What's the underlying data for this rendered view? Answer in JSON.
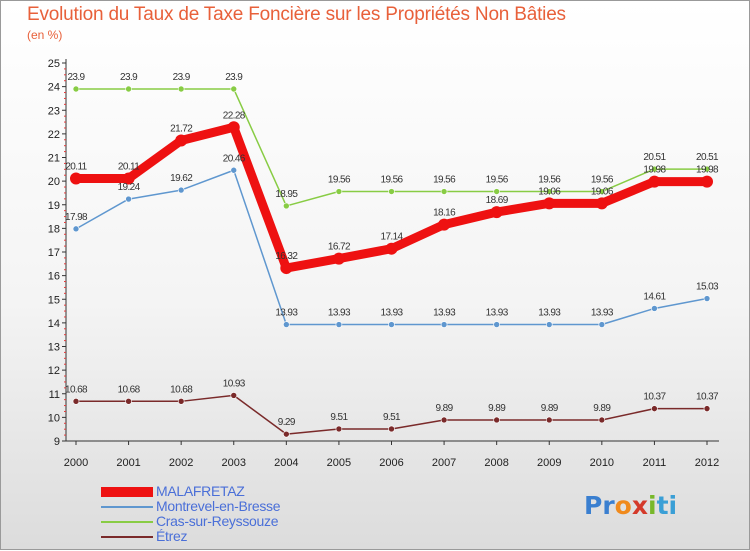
{
  "title": "Evolution du Taux de Taxe Foncière sur les Propriétés Non Bâties",
  "subtitle": "(en %)",
  "logo": {
    "parts": [
      "Pr",
      "o",
      "x",
      "i",
      "ti"
    ],
    "colors": [
      "#3a7fd0",
      "#f08a1c",
      "#d43a2a",
      "#78b82a",
      "#3a9fd6"
    ]
  },
  "chart_data": {
    "type": "line",
    "title": "Evolution du Taux de Taxe Foncière sur les Propriétés Non Bâties",
    "ylabel": "(en %)",
    "xlabel": "",
    "x": [
      "2000",
      "2001",
      "2002",
      "2003",
      "2004",
      "2005",
      "2006",
      "2007",
      "2008",
      "2009",
      "2010",
      "2011",
      "2012"
    ],
    "ylim": [
      9,
      25
    ],
    "yticks": [
      9,
      10,
      11,
      12,
      13,
      14,
      15,
      16,
      17,
      18,
      19,
      20,
      21,
      22,
      23,
      24,
      25
    ],
    "grid": false,
    "legend": "bottom-left",
    "series": [
      {
        "name": "MALAFRETAZ",
        "color": "#ee1111",
        "bold": true,
        "values": [
          20.11,
          20.11,
          21.72,
          22.28,
          16.32,
          16.72,
          17.14,
          18.16,
          18.69,
          19.06,
          19.06,
          19.98,
          19.98
        ],
        "labels": [
          "20.11",
          "20.11",
          "21.72",
          "22.28",
          "16.32",
          "16.72",
          "17.14",
          "18.16",
          "18.69",
          "19.06",
          "19.06",
          "19.98",
          "19.98"
        ]
      },
      {
        "name": "Montrevel-en-Bresse",
        "color": "#5f97cf",
        "values": [
          17.98,
          19.24,
          19.62,
          20.46,
          13.93,
          13.93,
          13.93,
          13.93,
          13.93,
          13.93,
          13.93,
          14.61,
          15.03
        ],
        "labels": [
          "17.98",
          "19.24",
          "19.62",
          "20.46",
          "13.93",
          "13.93",
          "13.93",
          "13.93",
          "13.93",
          "13.93",
          "13.93",
          "14.61",
          "15.03"
        ]
      },
      {
        "name": "Cras-sur-Reyssouze",
        "color": "#88cc44",
        "values": [
          23.9,
          23.9,
          23.9,
          23.9,
          18.95,
          19.56,
          19.56,
          19.56,
          19.56,
          19.56,
          19.56,
          20.51,
          20.51
        ],
        "labels": [
          "23.9",
          "23.9",
          "23.9",
          "23.9",
          "18.95",
          "19.56",
          "19.56",
          "19.56",
          "19.56",
          "19.56",
          "19.56",
          "20.51",
          "20.51"
        ]
      },
      {
        "name": "Étrez",
        "color": "#7a2a2a",
        "values": [
          10.68,
          10.68,
          10.68,
          10.93,
          9.29,
          9.51,
          9.51,
          9.89,
          9.89,
          9.89,
          9.89,
          10.37,
          10.37
        ],
        "labels": [
          "10.68",
          "10.68",
          "10.68",
          "10.93",
          "9.29",
          "9.51",
          "9.51",
          "9.89",
          "9.89",
          "9.89",
          "9.89",
          "10.37",
          "10.37"
        ]
      }
    ]
  }
}
